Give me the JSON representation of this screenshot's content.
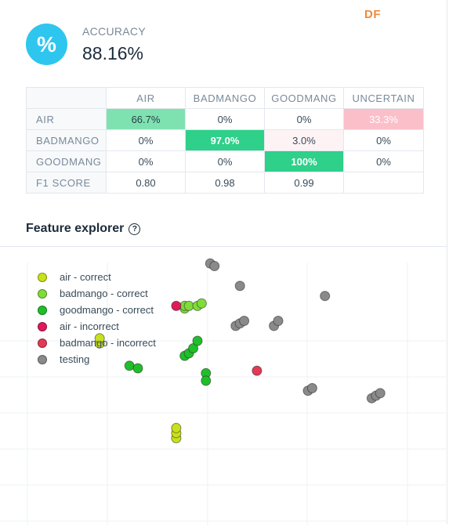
{
  "tag": "DF",
  "accuracy": {
    "icon": "percent-icon",
    "icon_glyph": "%",
    "label": "ACCURACY",
    "value": "88.16%"
  },
  "confusion_matrix": {
    "columns": [
      "AIR",
      "BADMANGO",
      "GOODMANG",
      "UNCERTAIN"
    ],
    "rows": [
      {
        "label": "AIR",
        "cells": [
          "66.7%",
          "0%",
          "0%",
          "33.3%"
        ],
        "colors": [
          "#7ee2b0",
          "",
          "",
          "#fbbfc9"
        ]
      },
      {
        "label": "BADMANGO",
        "cells": [
          "0%",
          "97.0%",
          "3.0%",
          "0%"
        ],
        "colors": [
          "",
          "#2ed08a",
          "#fdf3f4",
          ""
        ]
      },
      {
        "label": "GOODMANG",
        "cells": [
          "0%",
          "0%",
          "100%",
          "0%"
        ],
        "colors": [
          "",
          "",
          "#2ed08a",
          ""
        ]
      },
      {
        "label": "F1 SCORE",
        "cells": [
          "0.80",
          "0.98",
          "0.99",
          ""
        ],
        "colors": [
          "",
          "",
          "",
          ""
        ]
      }
    ]
  },
  "feature_explorer": {
    "title": "Feature explorer",
    "help_icon": "help-circle-icon"
  },
  "chart_data": {
    "type": "scatter",
    "title": "",
    "xlabel": "",
    "ylabel": "",
    "xlim": [
      0,
      100
    ],
    "ylim": [
      0,
      100
    ],
    "grid": true,
    "legend_position": "top-left",
    "series": [
      {
        "name": "air - correct",
        "color": "#c8e11a",
        "points": [
          [
            17,
            65
          ],
          [
            17,
            67
          ],
          [
            35,
            27
          ],
          [
            35,
            29
          ],
          [
            35,
            31
          ]
        ]
      },
      {
        "name": "badmango - correct",
        "color": "#7fdc3a",
        "points": [
          [
            37,
            79
          ],
          [
            37,
            80
          ],
          [
            38,
            80
          ],
          [
            40,
            80
          ],
          [
            41,
            81
          ]
        ]
      },
      {
        "name": "goodmango - correct",
        "color": "#1fbf2a",
        "points": [
          [
            24,
            56
          ],
          [
            26,
            55
          ],
          [
            37,
            60
          ],
          [
            38,
            61
          ],
          [
            39,
            63
          ],
          [
            40,
            66
          ],
          [
            42,
            53
          ],
          [
            42,
            50
          ]
        ]
      },
      {
        "name": "air - incorrect",
        "color": "#e0195a",
        "points": [
          [
            35,
            80
          ]
        ]
      },
      {
        "name": "badmango - incorrect",
        "color": "#e33a55",
        "points": [
          [
            54,
            54
          ]
        ]
      },
      {
        "name": "testing",
        "color": "#8a8a8a",
        "points": [
          [
            43,
            97
          ],
          [
            44,
            96
          ],
          [
            50,
            88
          ],
          [
            49,
            72
          ],
          [
            50,
            73
          ],
          [
            51,
            74
          ],
          [
            58,
            72
          ],
          [
            59,
            74
          ],
          [
            66,
            46
          ],
          [
            67,
            47
          ],
          [
            70,
            84
          ],
          [
            81,
            43
          ],
          [
            82,
            44
          ],
          [
            83,
            45
          ]
        ]
      }
    ]
  }
}
